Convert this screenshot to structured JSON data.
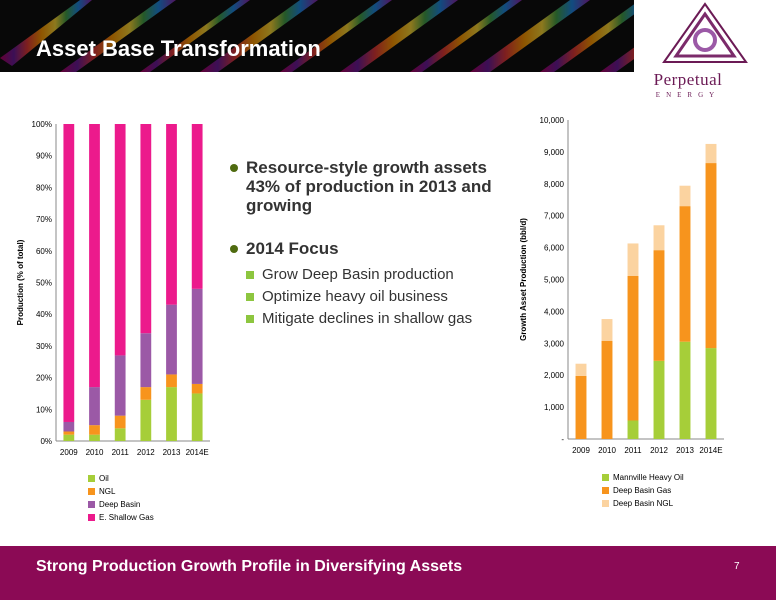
{
  "header": {
    "title": "Asset Base Transformation"
  },
  "logo": {
    "name": "Perpetual",
    "tagline": "ENERGY"
  },
  "bullets": {
    "main": "Resource-style growth assets 43% of production in 2013 and growing",
    "focus": "2014 Focus",
    "sub": [
      "Grow Deep Basin production",
      "Optimize heavy oil business",
      "Mitigate declines in shallow gas"
    ]
  },
  "footer": {
    "text": "Strong Production Growth Profile in  Diversifying Assets",
    "page": "7"
  },
  "colors": {
    "oil": "#a6ce39",
    "ngl": "#f7941d",
    "deep_basin": "#9b59a6",
    "shallow_gas": "#ec1a8c",
    "deep_basin_ngl": "#fbd3a0",
    "footer": "#8b0a55"
  },
  "chart_data": [
    {
      "type": "bar",
      "stacked": true,
      "categories": [
        "2009",
        "2010",
        "2011",
        "2012",
        "2013",
        "2014E"
      ],
      "ylabel": "Production (% of total)",
      "ylim": [
        0,
        100
      ],
      "yticks": [
        "0%",
        "10%",
        "20%",
        "30%",
        "40%",
        "50%",
        "60%",
        "70%",
        "80%",
        "90%",
        "100%"
      ],
      "legend_position": "bottom",
      "series": [
        {
          "name": "Oil",
          "color": "#a6ce39",
          "values": [
            2,
            2,
            4,
            13,
            17,
            15
          ]
        },
        {
          "name": "NGL",
          "color": "#f7941d",
          "values": [
            1,
            3,
            4,
            4,
            4,
            3
          ]
        },
        {
          "name": "Deep Basin",
          "color": "#9b59a6",
          "values": [
            3,
            12,
            19,
            17,
            22,
            30
          ]
        },
        {
          "name": "E. Shallow Gas",
          "color": "#ec1a8c",
          "values": [
            94,
            83,
            73,
            66,
            57,
            52
          ]
        }
      ]
    },
    {
      "type": "bar",
      "stacked": true,
      "categories": [
        "2009",
        "2010",
        "2011",
        "2012",
        "2013",
        "2014E"
      ],
      "ylabel": "Growth Asset Production (bbl/d)",
      "ylim": [
        0,
        10000
      ],
      "yticks": [
        "-",
        "1,000",
        "2,000",
        "3,000",
        "4,000",
        "5,000",
        "6,000",
        "7,000",
        "8,000",
        "9,000",
        "10,000"
      ],
      "legend_position": "bottom",
      "series": [
        {
          "name": "Mannville Heavy Oil",
          "color": "#a6ce39",
          "values": [
            0,
            0,
            580,
            2450,
            3050,
            2850
          ]
        },
        {
          "name": "Deep Basin Gas",
          "color": "#f7941d",
          "values": [
            1980,
            3080,
            4530,
            3470,
            4250,
            5800
          ]
        },
        {
          "name": "Deep Basin NGL",
          "color": "#fbd3a0",
          "values": [
            380,
            680,
            1020,
            780,
            640,
            600
          ]
        }
      ]
    }
  ]
}
